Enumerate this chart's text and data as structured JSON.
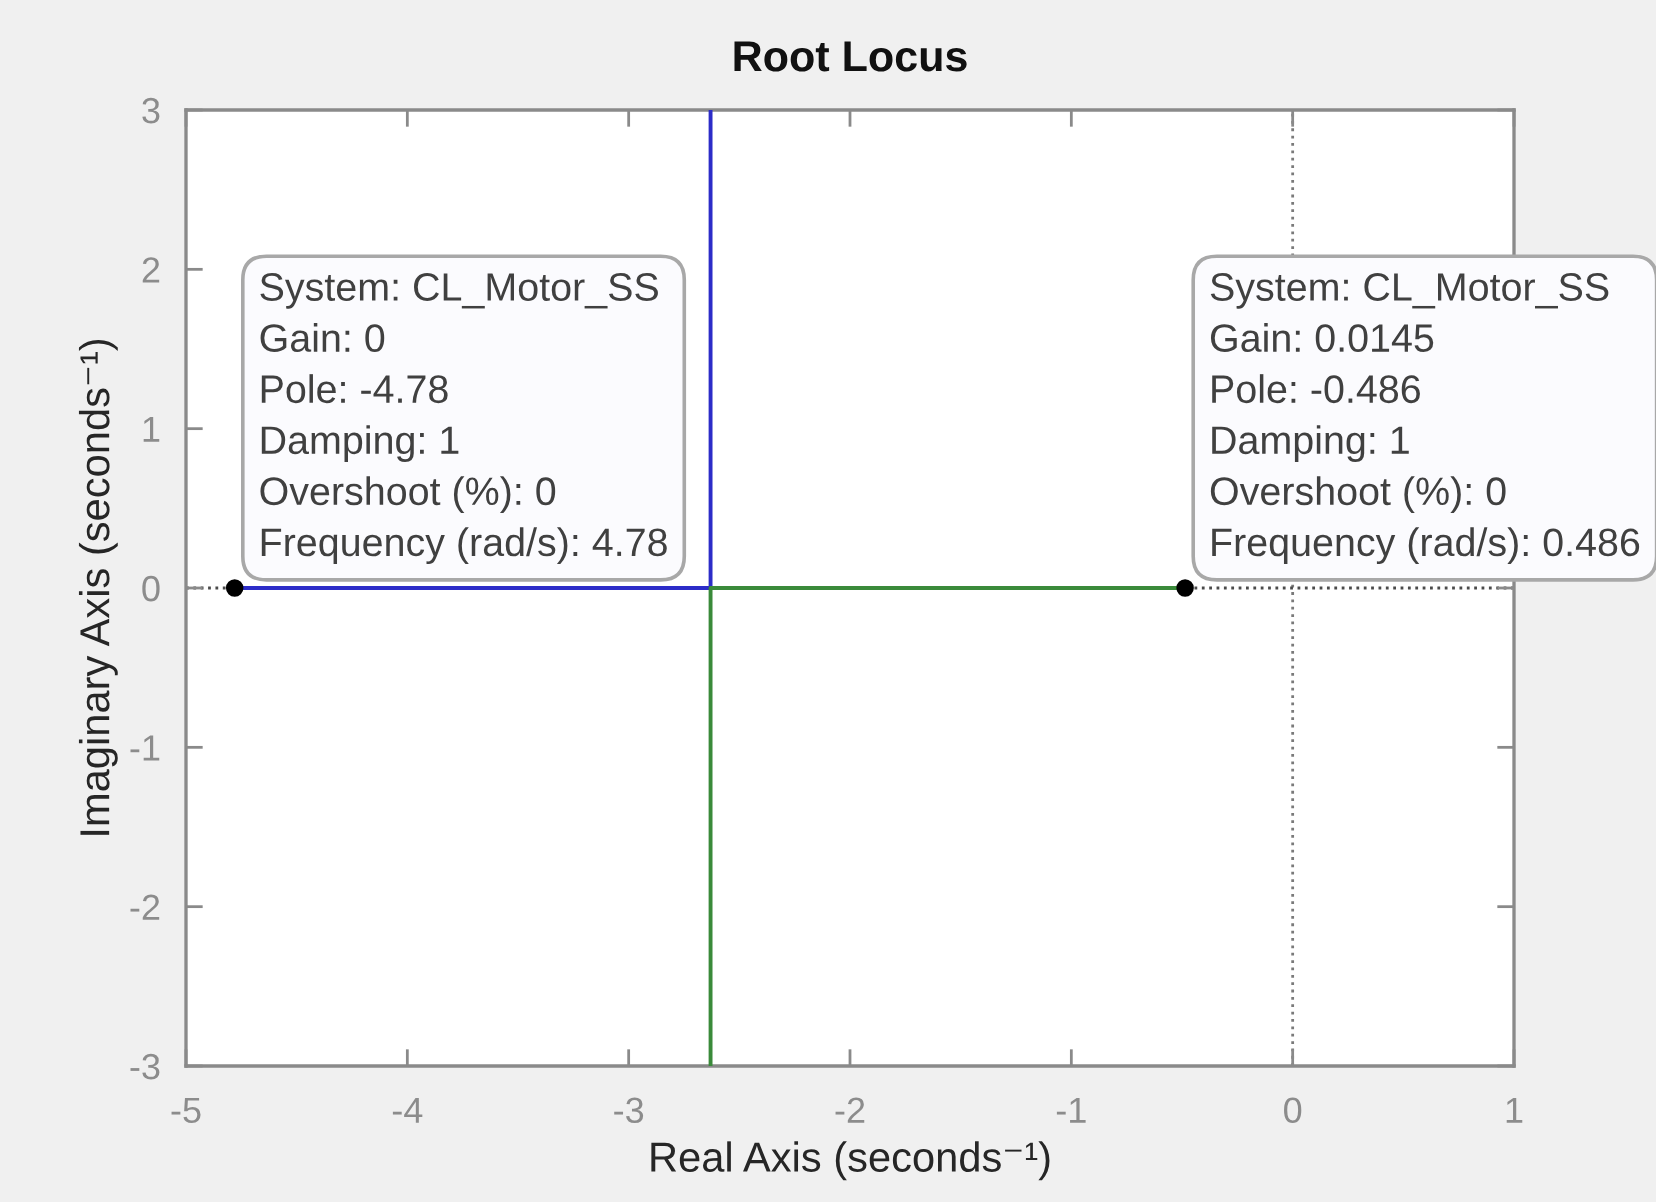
{
  "chart_data": {
    "type": "line",
    "title": "Root Locus",
    "xlabel": "Real Axis (seconds⁻¹)",
    "ylabel": "Imaginary Axis (seconds⁻¹)",
    "xlim": [
      -5,
      1
    ],
    "ylim": [
      -3,
      3
    ],
    "xticks": [
      -5,
      -4,
      -3,
      -2,
      -1,
      0,
      1
    ],
    "yticks": [
      -3,
      -2,
      -1,
      0,
      1,
      2,
      3
    ],
    "line_style": "solid",
    "series": [
      {
        "color": "#2c2cc8",
        "x": [
          -4.78,
          -2.63,
          -2.63
        ],
        "values": [
          0,
          0,
          3
        ]
      },
      {
        "color": "#3a8a3a",
        "x": [
          -0.486,
          -2.63,
          -2.63
        ],
        "values": [
          0,
          0,
          -3
        ]
      },
      {
        "type": "scatter",
        "color": "#000000",
        "marker": "circle",
        "x": [
          -4.78,
          -0.486
        ],
        "values": [
          0,
          0
        ]
      }
    ],
    "ref_lines": [
      {
        "axis": "x",
        "value": 0,
        "line_style": "dotted",
        "color": "#7a7a7a"
      },
      {
        "axis": "y",
        "value": 0,
        "line_style": "dotted",
        "color": "#4a4a4a"
      }
    ],
    "annotations": [
      {
        "text": "System: CL_Motor_SS\nGain: 0\nPole: -4.78\nDamping: 1\nOvershoot (%): 0\nFrequency (rad/s): 4.78",
        "x": -4.78,
        "y": 0
      },
      {
        "text": "System: CL_Motor_SS\nGain: 0.0145\nPole: -0.486\nDamping: 1\nOvershoot (%): 0\nFrequency (rad/s): 0.486",
        "x": -0.486,
        "y": 0
      }
    ]
  }
}
